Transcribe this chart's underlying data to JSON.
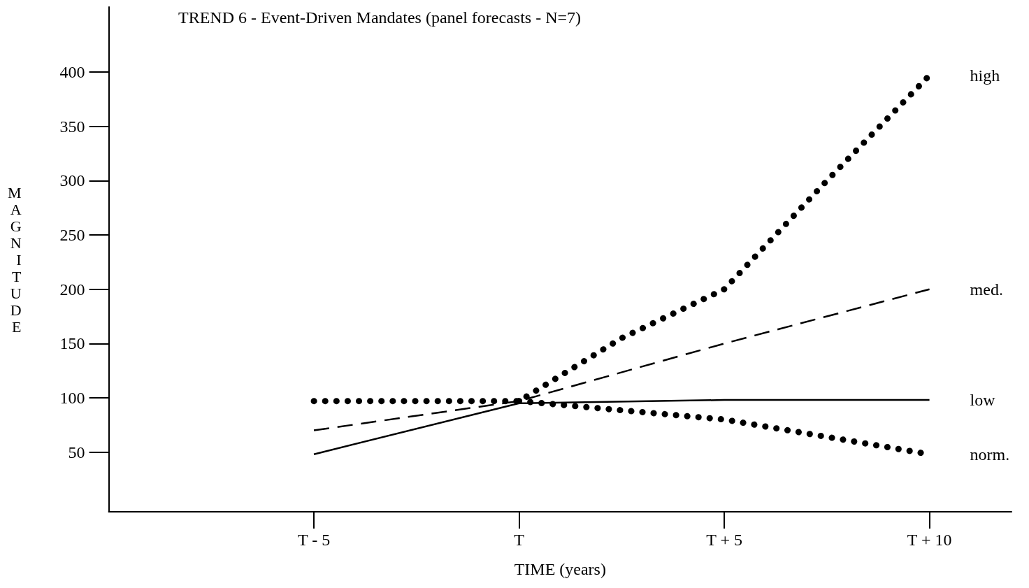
{
  "chart_data": {
    "type": "line",
    "title": "TREND 6 - Event-Driven Mandates (panel forecasts - N=7)",
    "xlabel": "TIME (years)",
    "ylabel": "MAGNITUDE",
    "xlim": [
      -10,
      12
    ],
    "xticks": [
      {
        "value": -5,
        "label": "T - 5"
      },
      {
        "value": 0,
        "label": "T"
      },
      {
        "value": 5,
        "label": "T + 5"
      },
      {
        "value": 10,
        "label": "T + 10"
      }
    ],
    "ylim": [
      -5,
      460
    ],
    "yticks": [
      50,
      100,
      150,
      200,
      250,
      300,
      350,
      400
    ],
    "grid": false,
    "legend": false,
    "marker": "none",
    "series": [
      {
        "name": "high",
        "color": "#000000",
        "line_style": "dotted",
        "x": [
          -5,
          0,
          2.5,
          5,
          7.5,
          10
        ],
        "values": [
          97,
          97,
          155,
          200,
          300,
          397
        ]
      },
      {
        "name": "med.",
        "color": "#000000",
        "line_style": "dashed",
        "x": [
          -5,
          0,
          5,
          10
        ],
        "values": [
          70,
          97,
          150,
          200
        ]
      },
      {
        "name": "low",
        "color": "#000000",
        "line_style": "solid",
        "x": [
          -5,
          0,
          5,
          10
        ],
        "values": [
          48,
          95,
          98,
          98
        ]
      },
      {
        "name": "norm.",
        "color": "#000000",
        "line_style": "dotted",
        "x": [
          0,
          5,
          10
        ],
        "values": [
          97,
          80,
          48
        ]
      }
    ]
  }
}
